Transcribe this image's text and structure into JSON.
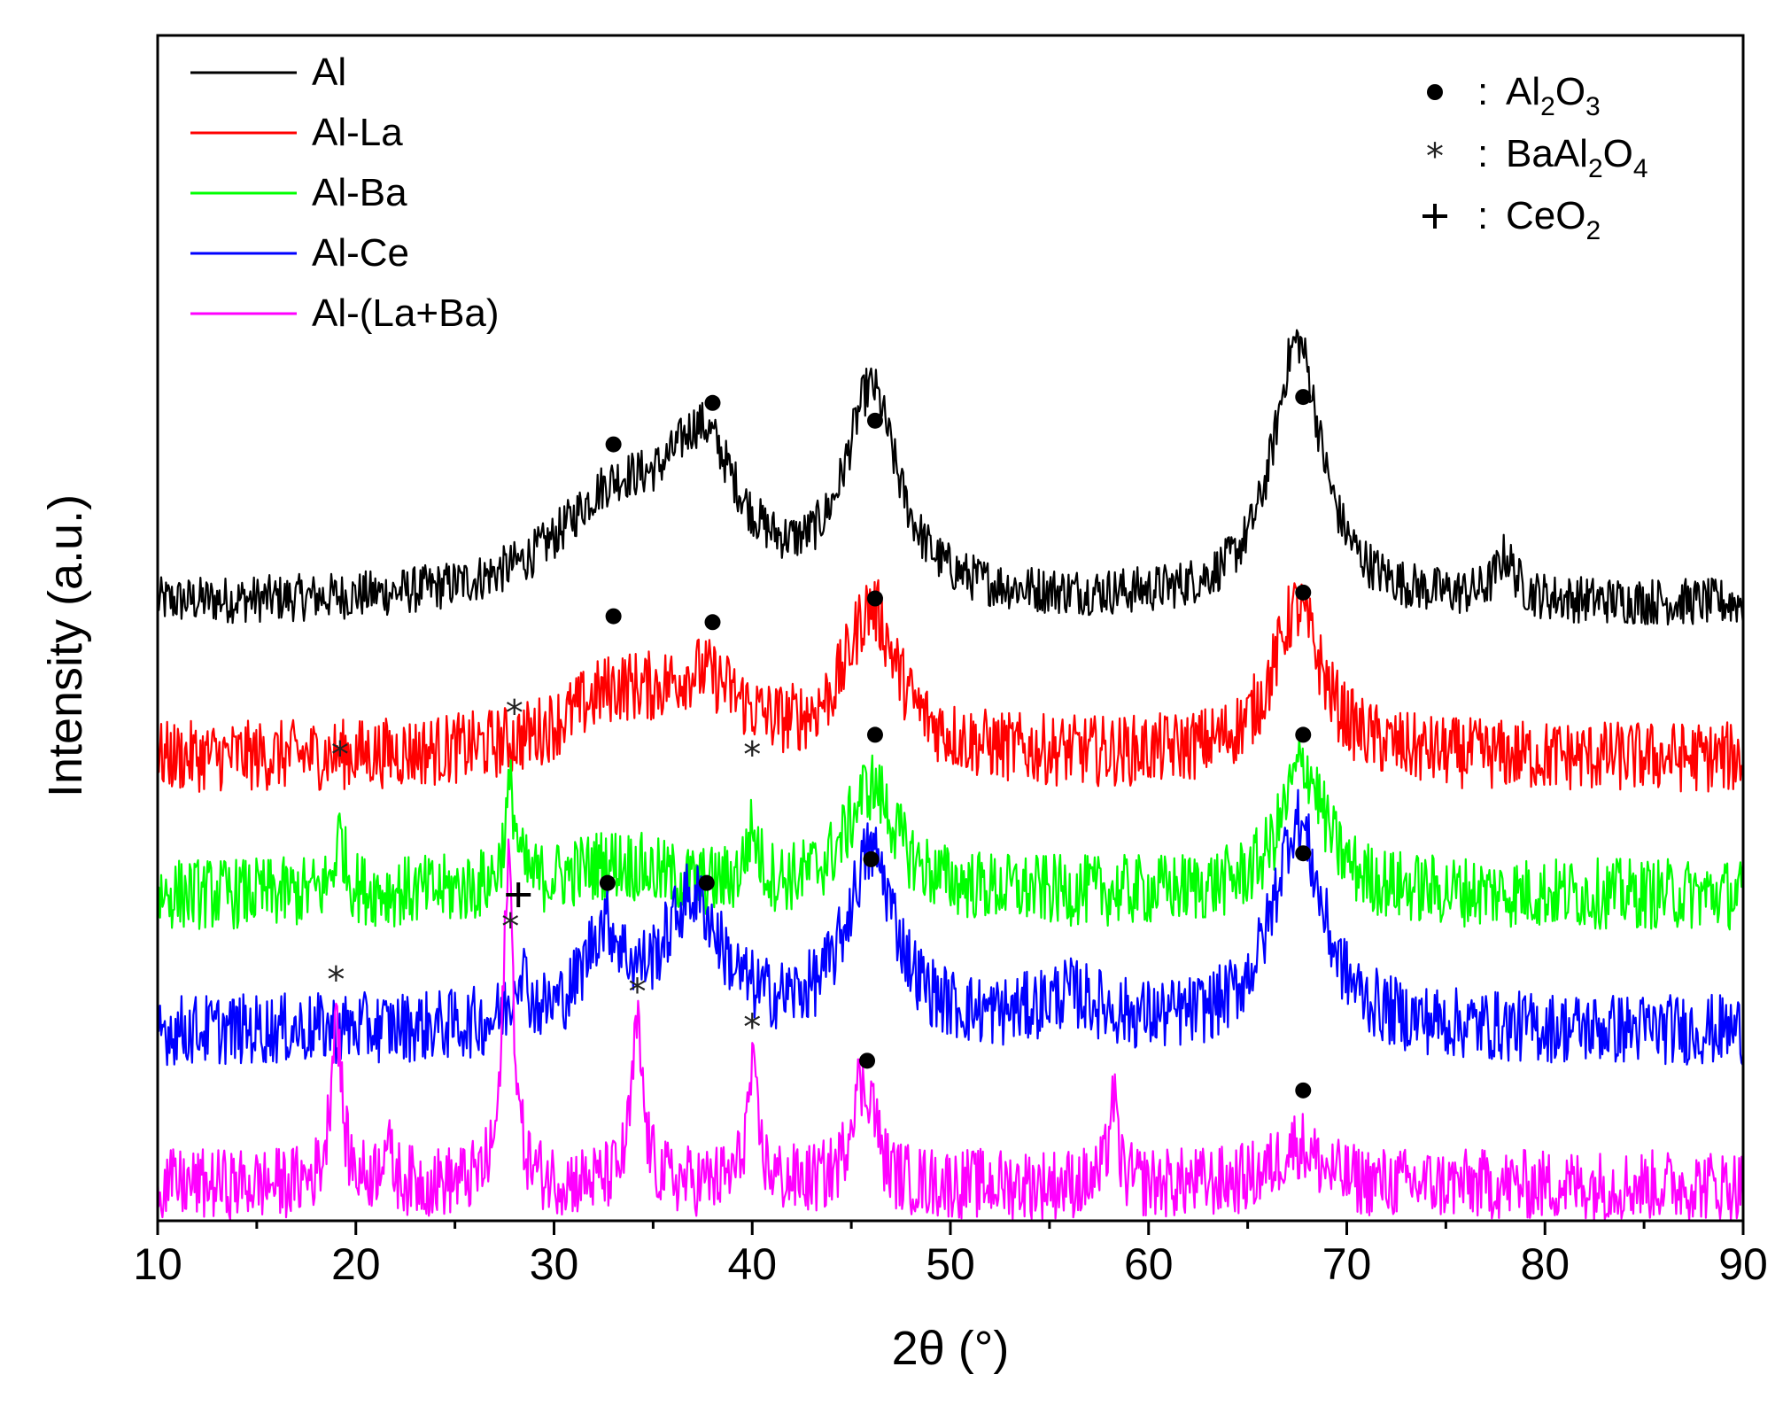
{
  "chart_data": {
    "type": "line",
    "xlabel": "2θ (°)",
    "ylabel": "Intensity (a.u.)",
    "xlim": [
      10,
      90
    ],
    "xticks": [
      10,
      20,
      30,
      40,
      50,
      60,
      70,
      80,
      90
    ],
    "grid": false,
    "legend_position": "top-left",
    "series": [
      {
        "name": "Al",
        "color": "#000000",
        "baseline": 5.2,
        "noise": 0.2,
        "peaks": [
          [
            33,
            0.8,
            3.5
          ],
          [
            37.5,
            1.15,
            2.2
          ],
          [
            46,
            1.7,
            1.6
          ],
          [
            67.5,
            2.2,
            1.5
          ],
          [
            78,
            0.35,
            0.6
          ]
        ],
        "markers": [
          {
            "x": 33,
            "y": 6.55,
            "symbol": "dot"
          },
          {
            "x": 38,
            "y": 6.9,
            "symbol": "dot"
          },
          {
            "x": 46.2,
            "y": 6.75,
            "symbol": "dot"
          },
          {
            "x": 67.8,
            "y": 6.95,
            "symbol": "dot"
          }
        ]
      },
      {
        "name": "Al-La",
        "color": "#ff0000",
        "baseline": 3.9,
        "noise": 0.3,
        "peaks": [
          [
            33,
            0.45,
            3.0
          ],
          [
            37.5,
            0.55,
            2.5
          ],
          [
            46,
            1.2,
            1.6
          ],
          [
            67.5,
            1.25,
            1.5
          ]
        ],
        "markers": [
          {
            "x": 33,
            "y": 5.1,
            "symbol": "dot"
          },
          {
            "x": 38,
            "y": 5.05,
            "symbol": "dot"
          },
          {
            "x": 46.2,
            "y": 5.25,
            "symbol": "dot"
          },
          {
            "x": 67.8,
            "y": 5.3,
            "symbol": "dot"
          }
        ]
      },
      {
        "name": "Al-Ba",
        "color": "#00ff00",
        "baseline": 2.75,
        "noise": 0.3,
        "peaks": [
          [
            19.2,
            0.5,
            0.3
          ],
          [
            27.8,
            0.8,
            0.35
          ],
          [
            33,
            0.25,
            3.0
          ],
          [
            40,
            0.45,
            0.4
          ],
          [
            46,
            0.9,
            1.5
          ],
          [
            67.8,
            1.1,
            1.3
          ]
        ],
        "markers": [
          {
            "x": 19.2,
            "y": 3.95,
            "symbol": "star"
          },
          {
            "x": 28,
            "y": 4.3,
            "symbol": "star"
          },
          {
            "x": 40,
            "y": 3.95,
            "symbol": "star"
          },
          {
            "x": 46.2,
            "y": 4.1,
            "symbol": "dot"
          },
          {
            "x": 67.8,
            "y": 4.1,
            "symbol": "dot"
          }
        ]
      },
      {
        "name": "Al-Ce",
        "color": "#0000ff",
        "baseline": 1.6,
        "noise": 0.3,
        "peaks": [
          [
            28.3,
            0.45,
            0.4
          ],
          [
            32.5,
            0.75,
            1.2
          ],
          [
            37,
            1.05,
            1.8
          ],
          [
            46,
            1.45,
            1.5
          ],
          [
            56,
            0.25,
            2.0
          ],
          [
            67.5,
            1.75,
            1.5
          ]
        ],
        "markers": [
          {
            "x": 28.2,
            "y": 2.75,
            "symbol": "plus"
          },
          {
            "x": 32.7,
            "y": 2.85,
            "symbol": "dot"
          },
          {
            "x": 37.7,
            "y": 2.85,
            "symbol": "dot"
          },
          {
            "x": 46,
            "y": 3.05,
            "symbol": "dot"
          },
          {
            "x": 67.8,
            "y": 3.1,
            "symbol": "dot"
          }
        ]
      },
      {
        "name": "Al-(La+Ba)",
        "color": "#ff00ff",
        "baseline": 0.3,
        "noise": 0.3,
        "peaks": [
          [
            19,
            1.5,
            0.3
          ],
          [
            21.5,
            0.35,
            0.3
          ],
          [
            27.7,
            2.8,
            0.3
          ],
          [
            34.2,
            1.3,
            0.35
          ],
          [
            40,
            0.9,
            0.35
          ],
          [
            45.3,
            0.7,
            0.5
          ],
          [
            46,
            0.55,
            0.4
          ],
          [
            58.2,
            0.75,
            0.25
          ],
          [
            67.5,
            0.35,
            1.2
          ]
        ],
        "markers": [
          {
            "x": 19,
            "y": 2.05,
            "symbol": "star"
          },
          {
            "x": 27.8,
            "y": 2.5,
            "symbol": "star"
          },
          {
            "x": 34.2,
            "y": 1.95,
            "symbol": "star"
          },
          {
            "x": 40,
            "y": 1.65,
            "symbol": "star"
          },
          {
            "x": 45.8,
            "y": 1.35,
            "symbol": "dot"
          },
          {
            "x": 67.8,
            "y": 1.1,
            "symbol": "dot"
          }
        ]
      }
    ],
    "phase_legend": [
      {
        "symbol": "dot",
        "label_parts": [
          "Al",
          "2",
          "O",
          "3"
        ]
      },
      {
        "symbol": "star",
        "label_parts": [
          "BaAl",
          "2",
          "O",
          "4"
        ]
      },
      {
        "symbol": "plus",
        "label_parts": [
          "CeO",
          "2"
        ]
      }
    ]
  }
}
